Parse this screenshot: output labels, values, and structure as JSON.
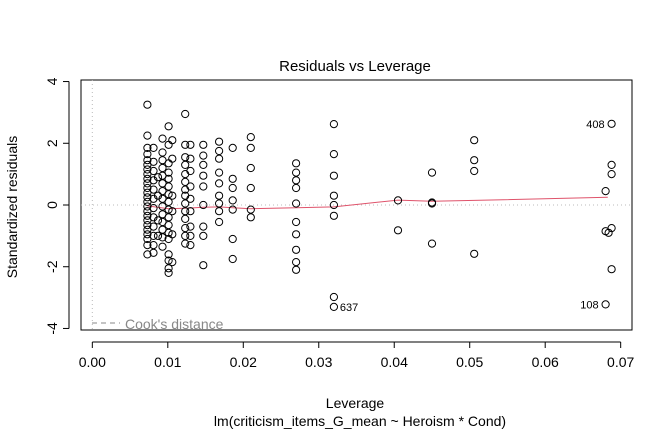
{
  "chart_data": {
    "type": "scatter",
    "title": "Residuals vs Leverage",
    "xlabel": "Leverage",
    "subtitle": "lm(criticism_items_G_mean ~ Heroism * Cond)",
    "ylabel": "Standardized residuals",
    "xlim": [
      -0.0015,
      0.0715
    ],
    "ylim": [
      -4.05,
      4.05
    ],
    "x_ticks": [
      0.0,
      0.01,
      0.02,
      0.03,
      0.04,
      0.05,
      0.06,
      0.07
    ],
    "x_tick_labels": [
      "0.00",
      "0.01",
      "0.02",
      "0.03",
      "0.04",
      "0.05",
      "0.06",
      "0.07"
    ],
    "y_ticks": [
      -4,
      -2,
      0,
      2,
      4
    ],
    "y_tick_labels": [
      "-4",
      "-2",
      "0",
      "2",
      "4"
    ],
    "legend": {
      "label": "Cook's distance",
      "placement": "bottom-left",
      "color": "#888888"
    },
    "reference_lines": {
      "x": 0,
      "y": 0,
      "color": "#bbbbbb",
      "style": "dotted"
    },
    "smooth_color": "#DF536B",
    "smooth": [
      [
        0.0073,
        -0.03
      ],
      [
        0.0101,
        -0.12
      ],
      [
        0.0127,
        -0.1
      ],
      [
        0.0147,
        -0.07
      ],
      [
        0.0168,
        -0.06
      ],
      [
        0.0186,
        -0.09
      ],
      [
        0.021,
        -0.12
      ],
      [
        0.027,
        -0.09
      ],
      [
        0.032,
        -0.06
      ],
      [
        0.0405,
        0.16
      ],
      [
        0.045,
        0.12
      ],
      [
        0.0506,
        0.15
      ],
      [
        0.0683,
        0.25
      ]
    ],
    "labeled_points": [
      {
        "label": "408",
        "x": 0.0688,
        "y": 2.63,
        "side": "left"
      },
      {
        "label": "637",
        "x": 0.032,
        "y": -3.3,
        "side": "right"
      },
      {
        "label": "108",
        "x": 0.068,
        "y": -3.22,
        "side": "left"
      }
    ],
    "points": [
      [
        0.0073,
        3.25
      ],
      [
        0.0073,
        2.25
      ],
      [
        0.0073,
        1.85
      ],
      [
        0.0073,
        1.65
      ],
      [
        0.0073,
        1.45
      ],
      [
        0.0073,
        1.3
      ],
      [
        0.0073,
        1.15
      ],
      [
        0.0073,
        1.0
      ],
      [
        0.0073,
        0.85
      ],
      [
        0.0073,
        0.7
      ],
      [
        0.0073,
        0.55
      ],
      [
        0.0073,
        0.4
      ],
      [
        0.0073,
        0.25
      ],
      [
        0.0073,
        0.1
      ],
      [
        0.0073,
        -0.05
      ],
      [
        0.0073,
        -0.2
      ],
      [
        0.0073,
        -0.35
      ],
      [
        0.0073,
        -0.5
      ],
      [
        0.0073,
        -0.65
      ],
      [
        0.0073,
        -0.8
      ],
      [
        0.0073,
        -0.95
      ],
      [
        0.0073,
        -1.1
      ],
      [
        0.0073,
        -1.3
      ],
      [
        0.0073,
        -1.6
      ],
      [
        0.0081,
        1.85
      ],
      [
        0.0081,
        1.4
      ],
      [
        0.0081,
        1.1
      ],
      [
        0.0081,
        0.8
      ],
      [
        0.0081,
        0.5
      ],
      [
        0.0081,
        0.2
      ],
      [
        0.0081,
        -0.1
      ],
      [
        0.0081,
        -0.4
      ],
      [
        0.0081,
        -0.7
      ],
      [
        0.0081,
        -1.0
      ],
      [
        0.0081,
        -1.3
      ],
      [
        0.0081,
        -1.55
      ],
      [
        0.0087,
        0.9
      ],
      [
        0.0087,
        0.3
      ],
      [
        0.0087,
        -0.5
      ],
      [
        0.0087,
        -1.0
      ],
      [
        0.0093,
        2.15
      ],
      [
        0.0093,
        1.7
      ],
      [
        0.0093,
        1.45
      ],
      [
        0.0093,
        1.2
      ],
      [
        0.0093,
        0.95
      ],
      [
        0.0093,
        0.7
      ],
      [
        0.0093,
        0.45
      ],
      [
        0.0093,
        0.2
      ],
      [
        0.0093,
        -0.05
      ],
      [
        0.0093,
        -0.3
      ],
      [
        0.0093,
        -0.55
      ],
      [
        0.0093,
        -0.8
      ],
      [
        0.0093,
        -1.05
      ],
      [
        0.0093,
        -1.35
      ],
      [
        0.0101,
        2.55
      ],
      [
        0.0101,
        1.95
      ],
      [
        0.0101,
        1.35
      ],
      [
        0.0101,
        1.05
      ],
      [
        0.0101,
        0.85
      ],
      [
        0.0101,
        0.6
      ],
      [
        0.0101,
        0.35
      ],
      [
        0.0101,
        0.1
      ],
      [
        0.0101,
        -0.15
      ],
      [
        0.0101,
        -0.4
      ],
      [
        0.0101,
        -0.65
      ],
      [
        0.0101,
        -0.9
      ],
      [
        0.0101,
        -1.1
      ],
      [
        0.0101,
        -1.6
      ],
      [
        0.0101,
        -1.8
      ],
      [
        0.0101,
        -2.05
      ],
      [
        0.0101,
        -2.2
      ],
      [
        0.0106,
        2.1
      ],
      [
        0.0106,
        1.5
      ],
      [
        0.0106,
        0.3
      ],
      [
        0.0106,
        -0.2
      ],
      [
        0.0106,
        -0.95
      ],
      [
        0.0106,
        -1.85
      ],
      [
        0.0123,
        2.95
      ],
      [
        0.0123,
        1.95
      ],
      [
        0.0123,
        1.55
      ],
      [
        0.0123,
        1.3
      ],
      [
        0.0123,
        1.0
      ],
      [
        0.0123,
        0.75
      ],
      [
        0.0123,
        0.5
      ],
      [
        0.0123,
        0.3
      ],
      [
        0.0123,
        0.05
      ],
      [
        0.0123,
        -0.2
      ],
      [
        0.0123,
        -0.45
      ],
      [
        0.0123,
        -0.75
      ],
      [
        0.0123,
        -1.0
      ],
      [
        0.0123,
        -1.25
      ],
      [
        0.013,
        1.95
      ],
      [
        0.013,
        1.5
      ],
      [
        0.013,
        1.1
      ],
      [
        0.013,
        0.6
      ],
      [
        0.013,
        0.2
      ],
      [
        0.013,
        -0.2
      ],
      [
        0.013,
        -0.7
      ],
      [
        0.013,
        -1.0
      ],
      [
        0.013,
        -1.3
      ],
      [
        0.0147,
        1.95
      ],
      [
        0.0147,
        1.6
      ],
      [
        0.0147,
        1.3
      ],
      [
        0.0147,
        0.95
      ],
      [
        0.0147,
        0.6
      ],
      [
        0.0147,
        0.0
      ],
      [
        0.0147,
        -0.7
      ],
      [
        0.0147,
        -1.0
      ],
      [
        0.0147,
        -1.95
      ],
      [
        0.0168,
        2.05
      ],
      [
        0.0168,
        1.75
      ],
      [
        0.0168,
        1.5
      ],
      [
        0.0168,
        1.05
      ],
      [
        0.0168,
        0.7
      ],
      [
        0.0168,
        0.3
      ],
      [
        0.0168,
        0.05
      ],
      [
        0.0168,
        -0.2
      ],
      [
        0.0168,
        -0.55
      ],
      [
        0.0186,
        1.85
      ],
      [
        0.0186,
        0.85
      ],
      [
        0.0186,
        0.55
      ],
      [
        0.0186,
        0.15
      ],
      [
        0.0186,
        -0.15
      ],
      [
        0.0186,
        -1.1
      ],
      [
        0.0186,
        -1.75
      ],
      [
        0.021,
        2.2
      ],
      [
        0.021,
        1.85
      ],
      [
        0.021,
        1.2
      ],
      [
        0.021,
        0.55
      ],
      [
        0.021,
        -0.15
      ],
      [
        0.021,
        -0.4
      ],
      [
        0.027,
        1.35
      ],
      [
        0.027,
        1.05
      ],
      [
        0.027,
        0.8
      ],
      [
        0.027,
        0.55
      ],
      [
        0.027,
        0.05
      ],
      [
        0.027,
        -0.55
      ],
      [
        0.027,
        -0.95
      ],
      [
        0.027,
        -1.45
      ],
      [
        0.027,
        -1.85
      ],
      [
        0.027,
        -2.1
      ],
      [
        0.032,
        2.62
      ],
      [
        0.032,
        1.65
      ],
      [
        0.032,
        0.95
      ],
      [
        0.032,
        0.3
      ],
      [
        0.032,
        0.0
      ],
      [
        0.032,
        -0.35
      ],
      [
        0.032,
        -2.98
      ],
      [
        0.032,
        -3.3
      ],
      [
        0.0405,
        0.15
      ],
      [
        0.0405,
        -0.82
      ],
      [
        0.045,
        1.05
      ],
      [
        0.045,
        0.08
      ],
      [
        0.045,
        0.05
      ],
      [
        0.045,
        -1.25
      ],
      [
        0.0506,
        2.1
      ],
      [
        0.0506,
        1.45
      ],
      [
        0.0506,
        1.1
      ],
      [
        0.0506,
        -1.58
      ],
      [
        0.068,
        0.45
      ],
      [
        0.068,
        -0.85
      ],
      [
        0.068,
        -3.22
      ],
      [
        0.0688,
        2.63
      ],
      [
        0.0688,
        1.3
      ],
      [
        0.0688,
        1.0
      ],
      [
        0.0688,
        -0.75
      ],
      [
        0.0688,
        -2.08
      ],
      [
        0.0684,
        -0.9
      ]
    ]
  }
}
